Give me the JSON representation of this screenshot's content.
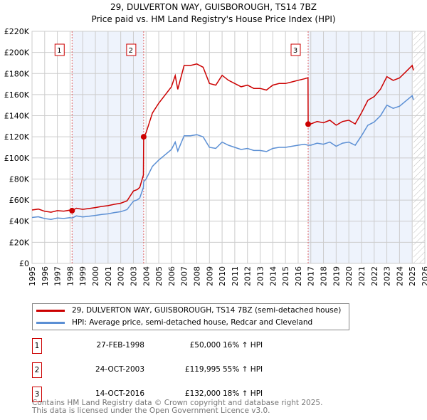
{
  "chart_data": {
    "type": "line",
    "title": "29, DULVERTON WAY, GUISBOROUGH, TS14 7BZ",
    "subtitle": "Price paid vs. HM Land Registry's House Price Index (HPI)",
    "xlim": [
      1995,
      2026
    ],
    "ylim": [
      0,
      220000
    ],
    "x_ticks": [
      "1995",
      "1996",
      "1997",
      "1998",
      "1999",
      "2000",
      "2001",
      "2002",
      "2003",
      "2004",
      "2005",
      "2006",
      "2007",
      "2008",
      "2009",
      "2010",
      "2011",
      "2012",
      "2013",
      "2014",
      "2015",
      "2016",
      "2017",
      "2018",
      "2019",
      "2020",
      "2021",
      "2022",
      "2023",
      "2024",
      "2025",
      "2026"
    ],
    "y_ticks": [
      {
        "v": 0,
        "label": "£0"
      },
      {
        "v": 20000,
        "label": "£20K"
      },
      {
        "v": 40000,
        "label": "£40K"
      },
      {
        "v": 60000,
        "label": "£60K"
      },
      {
        "v": 80000,
        "label": "£80K"
      },
      {
        "v": 100000,
        "label": "£100K"
      },
      {
        "v": 120000,
        "label": "£120K"
      },
      {
        "v": 140000,
        "label": "£140K"
      },
      {
        "v": 160000,
        "label": "£160K"
      },
      {
        "v": 180000,
        "label": "£180K"
      },
      {
        "v": 200000,
        "label": "£200K"
      },
      {
        "v": 220000,
        "label": "£220K"
      }
    ],
    "grid": true,
    "shaded_ranges": [
      [
        1998.16,
        2003.81
      ],
      [
        2016.79,
        2025.0
      ]
    ],
    "hatched_range": [
      2025.1,
      2026
    ],
    "series": [
      {
        "name": "29, DULVERTON WAY, GUISBOROUGH, TS14 7BZ (semi-detached house)",
        "color": "#cc0000",
        "x": [
          1995,
          1995.5,
          1996,
          1996.5,
          1997,
          1997.5,
          1998,
          1998.16,
          1998.5,
          1999,
          1999.5,
          2000,
          2000.5,
          2001,
          2001.5,
          2002,
          2002.5,
          2003,
          2003.3,
          2003.5,
          2003.79,
          2003.81,
          2004,
          2004.5,
          2005,
          2005.5,
          2006,
          2006.3,
          2006.5,
          2007,
          2007.5,
          2008,
          2008.5,
          2009,
          2009.5,
          2010,
          2010.5,
          2011,
          2011.5,
          2012,
          2012.5,
          2013,
          2013.5,
          2014,
          2014.5,
          2015,
          2015.5,
          2016,
          2016.5,
          2016.78,
          2016.79,
          2017,
          2017.5,
          2018,
          2018.5,
          2019,
          2019.5,
          2020,
          2020.5,
          2021,
          2021.5,
          2022,
          2022.5,
          2023,
          2023.5,
          2024,
          2024.5,
          2025,
          2025.1
        ],
        "values": [
          50600,
          51500,
          49400,
          48500,
          50000,
          49500,
          50500,
          50000,
          52300,
          51200,
          52000,
          52900,
          54000,
          54700,
          56000,
          57000,
          59300,
          68600,
          70000,
          72100,
          83700,
          119995,
          124000,
          142600,
          151900,
          159700,
          167400,
          178000,
          165000,
          187600,
          187600,
          189100,
          186000,
          170500,
          169000,
          178300,
          173600,
          170500,
          167400,
          169000,
          165900,
          165900,
          164300,
          169000,
          170500,
          170500,
          172000,
          173600,
          175000,
          176000,
          132000,
          132200,
          134500,
          133300,
          135700,
          131000,
          134500,
          135700,
          132200,
          142800,
          154600,
          158100,
          165200,
          177000,
          173500,
          175800,
          181700,
          187600,
          183000
        ]
      },
      {
        "name": "HPI: Average price, semi-detached house, Redcar and Cleveland",
        "color": "#5b8fd4",
        "x": [
          1995,
          1995.5,
          1996,
          1996.5,
          1997,
          1997.5,
          1998,
          1998.16,
          1998.5,
          1999,
          1999.5,
          2000,
          2000.5,
          2001,
          2001.5,
          2002,
          2002.5,
          2003,
          2003.3,
          2003.5,
          2003.79,
          2003.81,
          2004,
          2004.5,
          2005,
          2005.5,
          2006,
          2006.3,
          2006.5,
          2007,
          2007.5,
          2008,
          2008.5,
          2009,
          2009.5,
          2010,
          2010.5,
          2011,
          2011.5,
          2012,
          2012.5,
          2013,
          2013.5,
          2014,
          2014.5,
          2015,
          2015.5,
          2016,
          2016.5,
          2016.78,
          2016.79,
          2017,
          2017.5,
          2018,
          2018.5,
          2019,
          2019.5,
          2020,
          2020.5,
          2021,
          2021.5,
          2022,
          2022.5,
          2023,
          2023.5,
          2024,
          2024.5,
          2025,
          2025.1
        ],
        "values": [
          43500,
          44200,
          42500,
          41700,
          43000,
          42600,
          43400,
          43000,
          45000,
          44000,
          44700,
          45500,
          46400,
          47000,
          48200,
          49000,
          51000,
          59000,
          60200,
          62000,
          72000,
          77400,
          80000,
          92000,
          98000,
          103000,
          108000,
          115000,
          106500,
          121000,
          121000,
          122000,
          120000,
          110000,
          109000,
          115000,
          112000,
          110000,
          108000,
          109000,
          107000,
          107000,
          106000,
          109000,
          110000,
          110000,
          111000,
          112000,
          113000,
          112000,
          112000,
          112000,
          114000,
          113000,
          115000,
          111000,
          114000,
          115000,
          112000,
          121000,
          131000,
          134000,
          140000,
          150000,
          147000,
          149000,
          154000,
          159000,
          155000
        ]
      }
    ],
    "sales": [
      {
        "label": "1",
        "x": 1998.16,
        "value": 50000
      },
      {
        "label": "2",
        "x": 2003.81,
        "value": 119995
      },
      {
        "label": "3",
        "x": 2016.79,
        "value": 132000
      }
    ],
    "legend_position": "below"
  },
  "table": [
    {
      "num": "1",
      "date": "27-FEB-1998",
      "price": "£50,000",
      "pct": "16% ↑ HPI"
    },
    {
      "num": "2",
      "date": "24-OCT-2003",
      "price": "£119,995",
      "pct": "55% ↑ HPI"
    },
    {
      "num": "3",
      "date": "14-OCT-2016",
      "price": "£132,000",
      "pct": "18% ↑ HPI"
    }
  ],
  "footer": {
    "line1": "Contains HM Land Registry data © Crown copyright and database right 2025.",
    "line2": "This data is licensed under the Open Government Licence v3.0."
  }
}
